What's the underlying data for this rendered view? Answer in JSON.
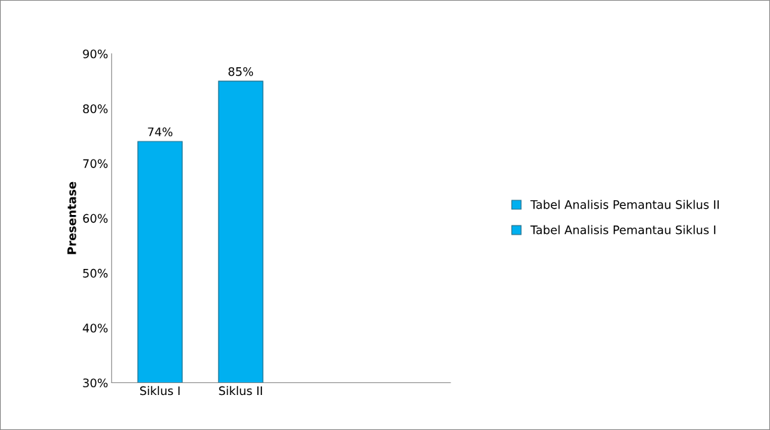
{
  "chart_data": {
    "type": "bar",
    "ylabel": "Presentase",
    "categories": [
      "Siklus I",
      "Siklus II",
      null,
      null
    ],
    "series": [
      {
        "name": "Tabel Analisis Pemantau Siklus II",
        "color": "#00b0f0",
        "values": [
          null,
          85,
          null,
          null
        ],
        "value_labels": [
          null,
          "85%",
          null,
          null
        ]
      },
      {
        "name": "Tabel Analisis Pemantau Siklus I",
        "color": "#00b0f0",
        "values": [
          74,
          null,
          null,
          null
        ],
        "value_labels": [
          "74%",
          null,
          null,
          null
        ]
      }
    ],
    "ylim": [
      30,
      90
    ],
    "yticks": [
      {
        "value": 30,
        "label": "30%"
      },
      {
        "value": 40,
        "label": "40%"
      },
      {
        "value": 50,
        "label": "50%"
      },
      {
        "value": 60,
        "label": "60%"
      },
      {
        "value": 70,
        "label": "70%"
      },
      {
        "value": 80,
        "label": "80%"
      },
      {
        "value": 90,
        "label": "90%"
      }
    ],
    "grid": false,
    "legend": "right"
  }
}
